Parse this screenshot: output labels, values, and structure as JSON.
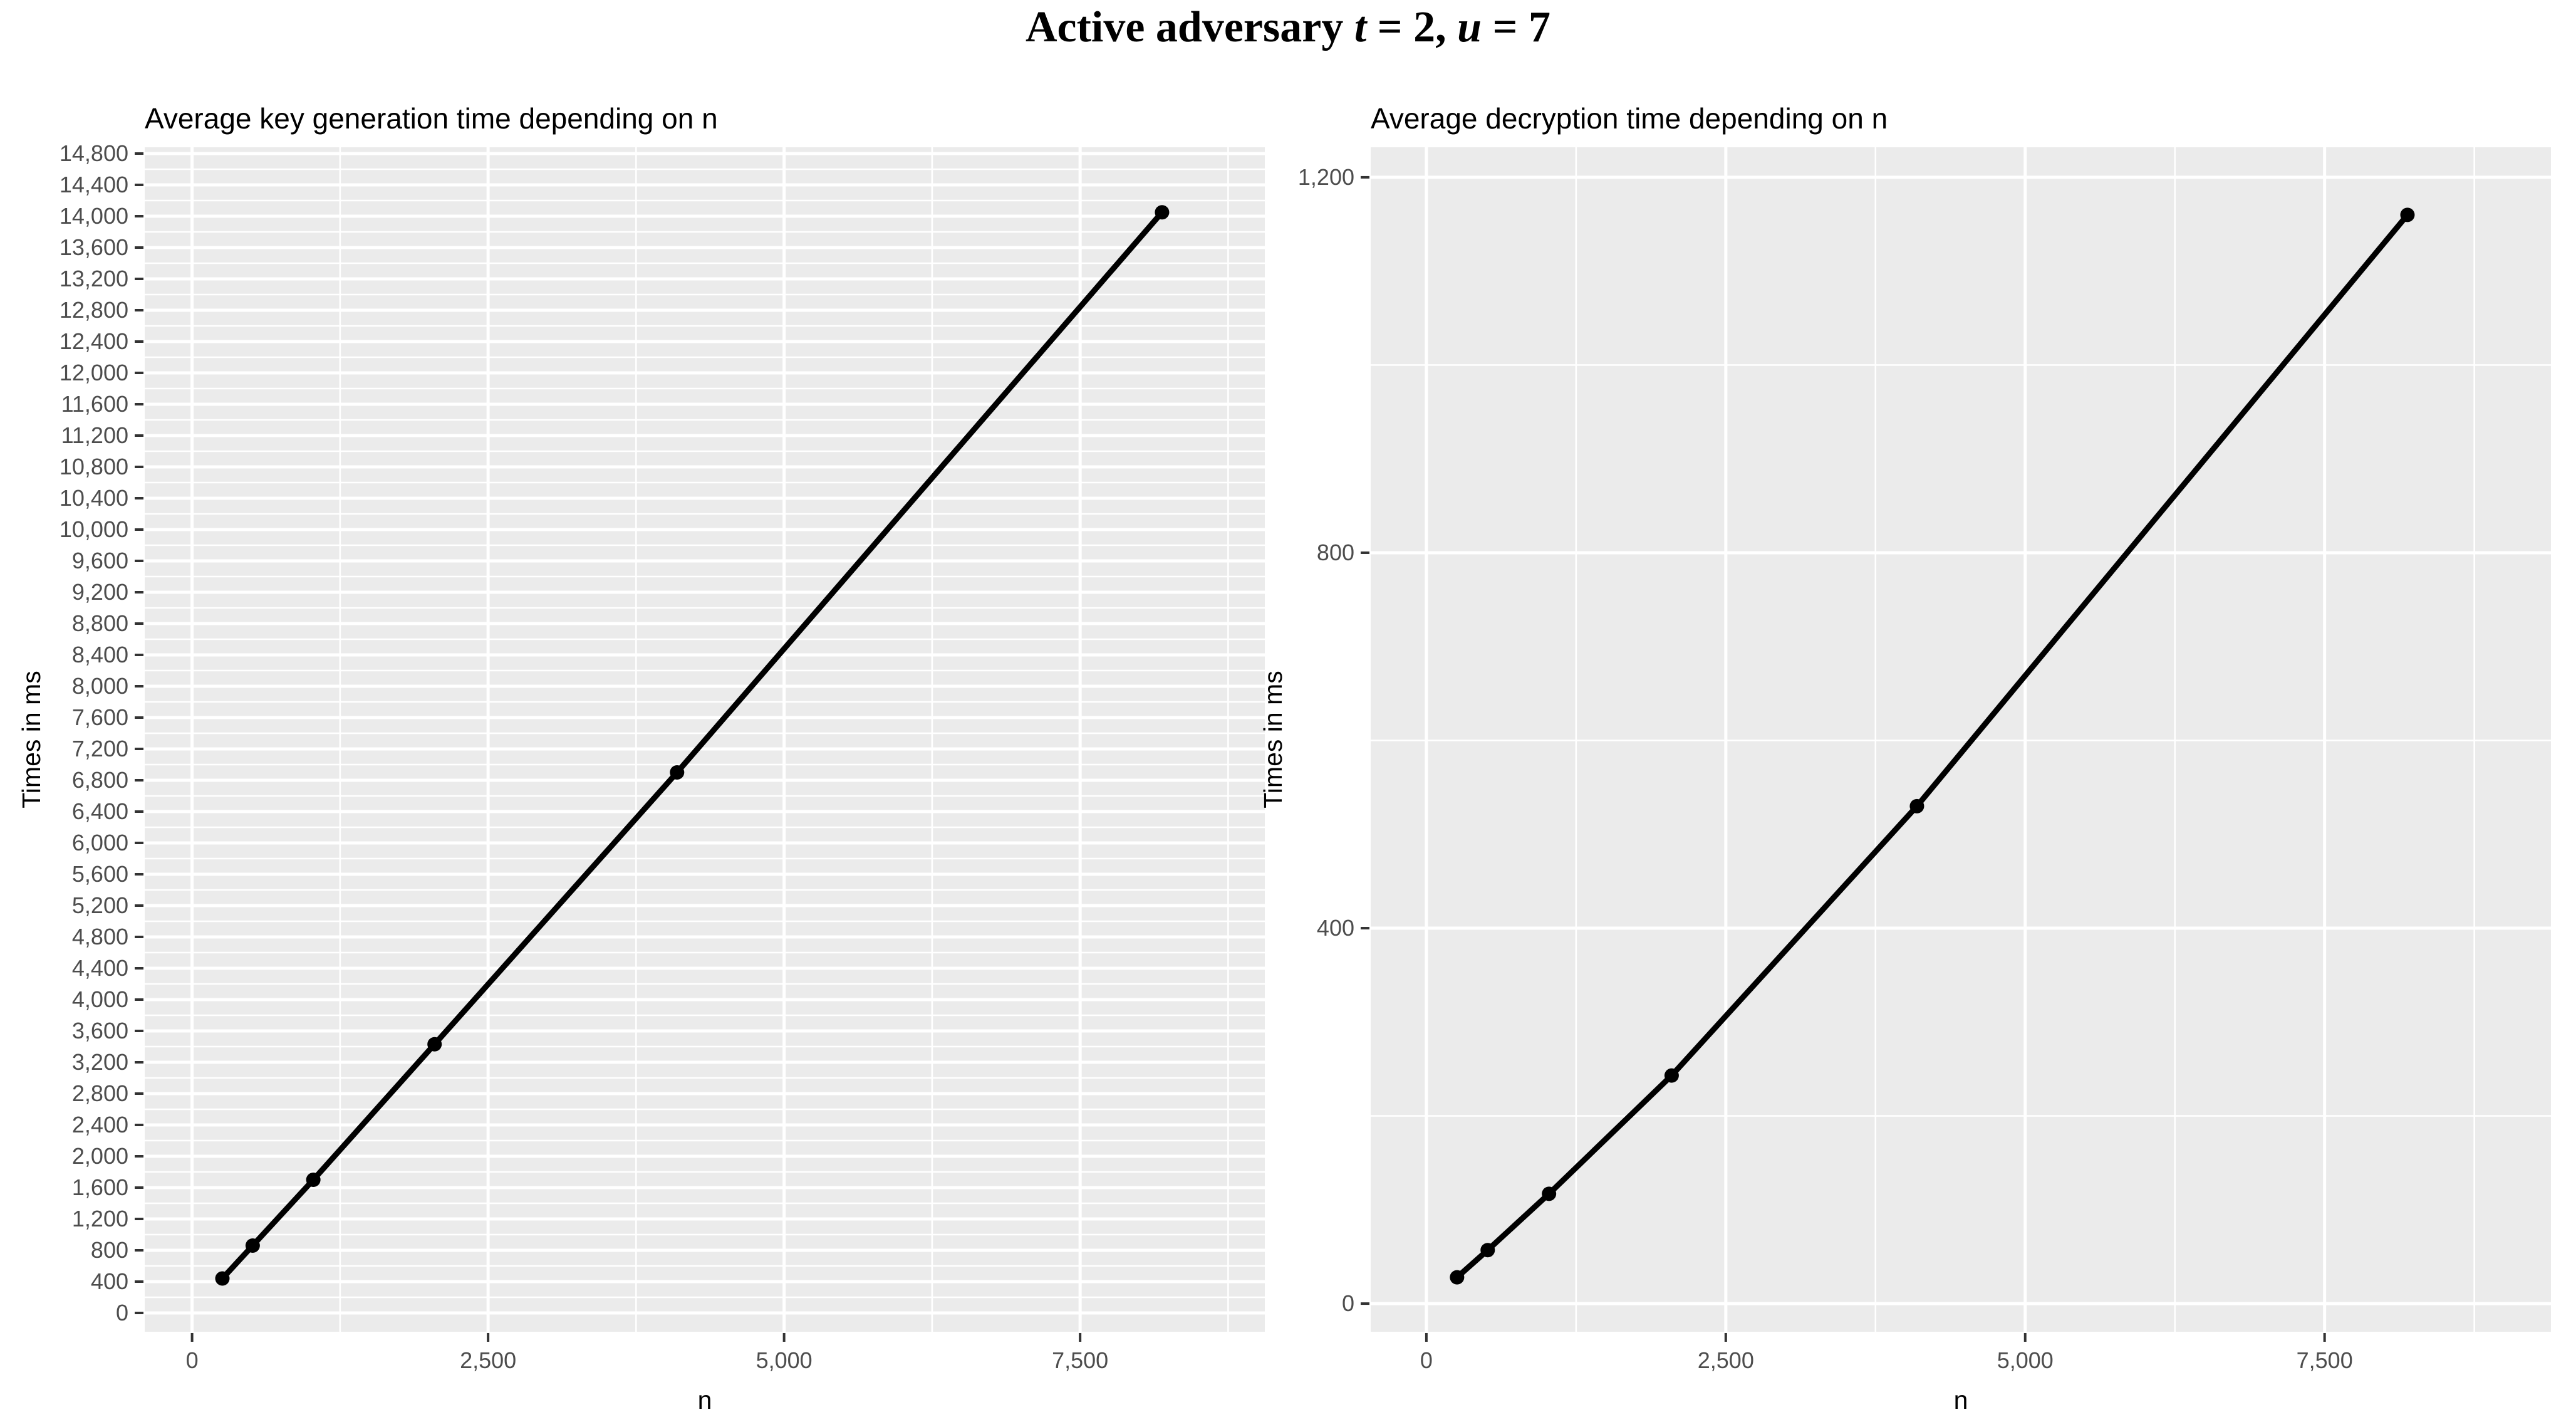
{
  "main_title": {
    "prefix": "Active adversary ",
    "var1": "t",
    "mid": " = 2, ",
    "var2": "u",
    "end": " = 7"
  },
  "chart_data": [
    {
      "type": "line",
      "title": "Average key generation time depending on n",
      "xlabel": "n",
      "ylabel": "Times in ms",
      "x": [
        256,
        512,
        1024,
        2048,
        4096,
        8192
      ],
      "y": [
        440,
        860,
        1700,
        3430,
        6900,
        14050
      ],
      "xlim": [
        -400,
        9060
      ],
      "ylim": [
        -240,
        14880
      ],
      "xticks": [
        0,
        2500,
        5000,
        7500
      ],
      "xtick_labels": [
        "0",
        "2,500",
        "5,000",
        "7,500"
      ],
      "yticks": {
        "min": 0,
        "max": 14800,
        "step": 400
      },
      "y_minor": {
        "min": 200,
        "step": 400
      },
      "x_minor": [
        1250,
        3750,
        6250,
        8750
      ],
      "grid": true,
      "legend": false,
      "marker": "point",
      "colors": {
        "panel": "#EBEBEB",
        "grid": "#FFFFFF",
        "series": "#000000",
        "tick_label": "#4D4D4D",
        "tick_mark": "#333333",
        "title_text": "#000000"
      }
    },
    {
      "type": "line",
      "title": "Average decryption time depending on n",
      "xlabel": "n",
      "ylabel": "Times in ms",
      "x": [
        256,
        512,
        1024,
        2048,
        4096,
        8192
      ],
      "y": [
        28,
        57,
        117,
        243,
        530,
        1160
      ],
      "xlim": [
        -465,
        9390
      ],
      "ylim": [
        -30,
        1232
      ],
      "xticks": [
        0,
        2500,
        5000,
        7500
      ],
      "xtick_labels": [
        "0",
        "2,500",
        "5,000",
        "7,500"
      ],
      "yticks": {
        "min": 0,
        "max": 1200,
        "step": 400
      },
      "y_minor": {
        "min": 200,
        "step": 400
      },
      "x_minor": [
        1250,
        3750,
        6250,
        8750
      ],
      "grid": true,
      "legend": false,
      "marker": "point",
      "colors": {
        "panel": "#EBEBEB",
        "grid": "#FFFFFF",
        "series": "#000000",
        "tick_label": "#4D4D4D",
        "tick_mark": "#333333",
        "title_text": "#000000"
      }
    }
  ]
}
